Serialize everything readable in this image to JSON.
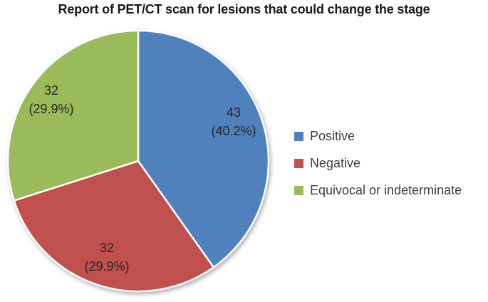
{
  "chart_data": {
    "type": "pie",
    "title": "Report of PET/CT scan for lesions that could change the stage",
    "categories": [
      "Positive",
      "Negative",
      "Equivocal or indeterminate"
    ],
    "values": [
      43,
      32,
      32
    ],
    "percentages": [
      40.2,
      29.9,
      29.9
    ],
    "colors": [
      "#4F81BD",
      "#C0504D",
      "#9ABB59"
    ],
    "start_angle_deg": 0,
    "direction": "clockwise",
    "legend_position": "right",
    "slice_labels": [
      {
        "value": "43",
        "pct": "(40.2%)"
      },
      {
        "value": "32",
        "pct": "(29.9%)"
      },
      {
        "value": "32",
        "pct": "(29.9%)"
      }
    ]
  },
  "legend": {
    "items": [
      {
        "label": "Positive",
        "color": "#4F81BD"
      },
      {
        "label": "Negative",
        "color": "#C0504D"
      },
      {
        "label": "Equivocal or indeterminate",
        "color": "#9ABB59"
      }
    ]
  }
}
